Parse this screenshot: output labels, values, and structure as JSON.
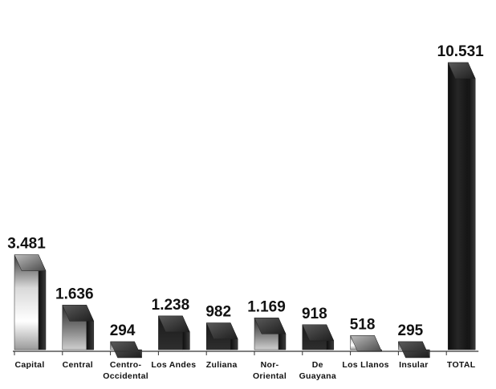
{
  "chart_data": {
    "type": "bar",
    "style": "3d",
    "title": "",
    "xlabel": "",
    "ylabel": "",
    "categories": [
      [
        "Capital"
      ],
      [
        "Central"
      ],
      [
        "Centro-",
        "Occidental"
      ],
      [
        "Los Andes"
      ],
      [
        "Zuliana"
      ],
      [
        "Nor-",
        "Oriental"
      ],
      [
        "De",
        "Guayana"
      ],
      [
        "Los Llanos"
      ],
      [
        "Insular"
      ],
      [
        "TOTAL"
      ]
    ],
    "values": [
      3481,
      1636,
      294,
      1238,
      982,
      1169,
      918,
      518,
      295,
      10531
    ],
    "value_labels": [
      "3.481",
      "1.636",
      "294",
      "1.238",
      "982",
      "1.169",
      "918",
      "518",
      "295",
      "10.531"
    ],
    "ylim": [
      0,
      10531
    ],
    "grid": false,
    "legend": "none",
    "colors": {
      "dark": "#161616",
      "mid": "#8a8a8a",
      "light": "#e8e8e8",
      "axis": "#333333"
    }
  }
}
